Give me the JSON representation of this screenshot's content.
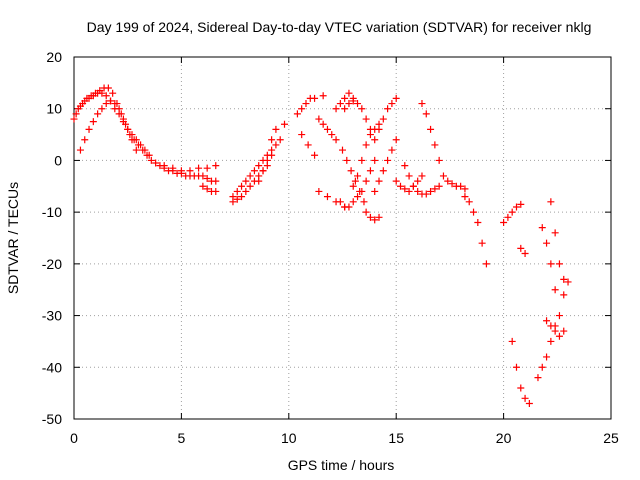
{
  "chart_data": {
    "type": "scatter",
    "title": "Day 199 of 2024, Sidereal Day-to-day VTEC variation (SDTVAR) for receiver nklg",
    "xlabel": "GPS time / hours",
    "ylabel": "SDTVAR / TECUs",
    "xlim": [
      0,
      25
    ],
    "ylim": [
      -50,
      20
    ],
    "xticks": [
      "0",
      "5",
      "10",
      "15",
      "20",
      "25"
    ],
    "yticks": [
      "20",
      "10",
      "0",
      "-10",
      "-20",
      "-30",
      "-40",
      "-50"
    ],
    "grid": true,
    "marker": "+",
    "marker_color": "#ff0000",
    "series": [
      {
        "name": "SDTVAR",
        "segments": [
          {
            "x": [
              0.0,
              0.2,
              0.4,
              0.6,
              0.8,
              1.0,
              1.2,
              1.4,
              1.6,
              1.8,
              2.0,
              2.2,
              2.4,
              2.6,
              2.8,
              3.0,
              3.2,
              3.4,
              3.6,
              3.8,
              4.0,
              4.2,
              4.4,
              4.6,
              4.8,
              5.0,
              5.2,
              5.4,
              5.6,
              5.8,
              6.0,
              6.2,
              6.4,
              6.6
            ],
            "y": [
              8,
              10,
              11,
              12,
              12.5,
              13,
              13.5,
              14,
              14,
              13,
              11,
              9,
              7,
              5,
              4,
              3,
              2,
              1,
              0,
              -0.5,
              -1,
              -1.5,
              -2,
              -2,
              -2.5,
              -2.5,
              -3,
              -3,
              -3,
              -3,
              -3,
              -3.5,
              -4,
              -4
            ]
          },
          {
            "x": [
              0.1,
              0.3,
              0.5,
              0.7,
              0.9,
              1.1,
              1.3,
              1.5,
              1.7,
              1.9,
              2.1,
              2.3,
              2.5,
              2.7,
              2.9,
              3.1,
              3.3,
              3.5
            ],
            "y": [
              9,
              10.5,
              11.5,
              12,
              12.5,
              13,
              13,
              12.5,
              11.5,
              10,
              9,
              7.5,
              6,
              5,
              4,
              3,
              2,
              1
            ]
          },
          {
            "x": [
              0.3,
              0.5,
              0.7,
              0.9,
              1.1,
              1.3,
              1.5,
              1.7,
              1.9,
              2.1,
              2.3,
              2.5,
              2.7,
              2.9
            ],
            "y": [
              2,
              4,
              6,
              7.5,
              9,
              10,
              11,
              11.5,
              11,
              10,
              8,
              6,
              4,
              2
            ]
          },
          {
            "x": [
              4.2,
              4.6,
              5.0,
              5.4,
              5.8,
              6.2,
              6.6
            ],
            "y": [
              -1,
              -1.5,
              -2,
              -2,
              -1.5,
              -1.5,
              -1
            ]
          },
          {
            "x": [
              6.0,
              6.2,
              6.4,
              6.6
            ],
            "y": [
              -5,
              -5.5,
              -6,
              -6
            ]
          },
          {
            "x": [
              7.4,
              7.6,
              7.8,
              8.0,
              8.2,
              8.4,
              8.6,
              8.8,
              9.0,
              9.2
            ],
            "y": [
              -7,
              -6,
              -5,
              -4,
              -3,
              -2,
              -1,
              0,
              1,
              1
            ]
          },
          {
            "x": [
              7.4,
              7.6,
              7.8,
              8.0,
              8.2,
              8.4,
              8.6,
              8.8,
              9.0
            ],
            "y": [
              -8,
              -7.5,
              -7,
              -6,
              -5,
              -4,
              -3,
              -2,
              -1
            ]
          },
          {
            "x": [
              8.6,
              8.8,
              9.0,
              9.2,
              9.4
            ],
            "y": [
              -4,
              -2,
              0,
              2,
              3
            ]
          },
          {
            "x": [
              9.2,
              9.4,
              9.6,
              9.8
            ],
            "y": [
              4,
              6,
              4,
              7
            ]
          },
          {
            "x": [
              10.4,
              10.6,
              10.8,
              11.0,
              11.2,
              11.6
            ],
            "y": [
              9,
              10,
              11,
              12,
              12,
              12.5
            ]
          },
          {
            "x": [
              10.6,
              10.9,
              11.2
            ],
            "y": [
              5,
              3,
              1
            ]
          },
          {
            "x": [
              11.4,
              11.6,
              11.8,
              12.0,
              12.2
            ],
            "y": [
              8,
              7,
              6,
              5,
              4
            ]
          },
          {
            "x": [
              12.2,
              12.4,
              12.6,
              12.8,
              13.0
            ],
            "y": [
              10,
              11,
              12,
              13,
              12
            ]
          },
          {
            "x": [
              11.4,
              11.8,
              12.2,
              12.6
            ],
            "y": [
              -6,
              -7,
              -8,
              -9
            ]
          },
          {
            "x": [
              12.4,
              12.6,
              12.8,
              13.0,
              13.2,
              13.4,
              13.6,
              13.8,
              14.0
            ],
            "y": [
              -8,
              -9,
              -9,
              -8,
              -7,
              -6,
              -4,
              -2,
              0
            ]
          },
          {
            "x": [
              12.6,
              12.8,
              13.0,
              13.2,
              13.4,
              13.6,
              13.8,
              14.0
            ],
            "y": [
              10,
              11,
              11.5,
              11,
              10,
              8,
              6,
              4
            ]
          },
          {
            "x": [
              12.5,
              12.7,
              12.9,
              13.1,
              13.3,
              13.5
            ],
            "y": [
              2,
              0,
              -2,
              -4,
              -6,
              -8
            ]
          },
          {
            "x": [
              13.0,
              13.2,
              13.4,
              13.6,
              13.8,
              14.0,
              14.2
            ],
            "y": [
              -5,
              -3,
              0,
              3,
              5,
              6,
              7
            ]
          },
          {
            "x": [
              13.6,
              13.8,
              14.0,
              14.2
            ],
            "y": [
              -10,
              -11,
              -11.5,
              -11
            ]
          },
          {
            "x": [
              14.2,
              14.4,
              14.6,
              14.8,
              15.0
            ],
            "y": [
              6,
              8,
              10,
              11,
              12
            ]
          },
          {
            "x": [
              14.0,
              14.2,
              14.4,
              14.6,
              14.8,
              15.0
            ],
            "y": [
              -6,
              -4,
              -2,
              0,
              2,
              4
            ]
          },
          {
            "x": [
              15.0,
              15.2,
              15.4,
              15.6,
              15.8,
              16.0,
              16.2
            ],
            "y": [
              -4,
              -5,
              -5.5,
              -6,
              -5,
              -4,
              -3
            ]
          },
          {
            "x": [
              16.2,
              16.4,
              16.6,
              16.8,
              17.0,
              17.2
            ],
            "y": [
              11,
              9,
              6,
              3,
              0,
              -3
            ]
          },
          {
            "x": [
              15.4,
              15.6,
              15.8,
              16.0,
              16.2,
              16.4,
              16.6,
              16.8,
              17.0
            ],
            "y": [
              -1,
              -3,
              -5,
              -6,
              -6.5,
              -6.5,
              -6,
              -5.5,
              -5
            ]
          },
          {
            "x": [
              17.4,
              17.6,
              17.8,
              18.0,
              18.2
            ],
            "y": [
              -4,
              -4.5,
              -5,
              -5,
              -5.5
            ]
          },
          {
            "x": [
              18.2,
              18.4,
              18.6,
              18.8,
              19.0,
              19.2
            ],
            "y": [
              -7,
              -8,
              -10,
              -12,
              -16,
              -20
            ]
          },
          {
            "x": [
              20.0,
              20.2,
              20.4,
              20.6,
              20.8
            ],
            "y": [
              -12,
              -11,
              -10,
              -9,
              -8.5
            ]
          },
          {
            "x": [
              20.4,
              20.6,
              20.8,
              21.0,
              21.2
            ],
            "y": [
              -35,
              -40,
              -44,
              -46,
              -47
            ]
          },
          {
            "x": [
              20.8,
              21.0
            ],
            "y": [
              -17,
              -18
            ]
          },
          {
            "x": [
              21.6,
              21.8,
              22.0,
              22.2,
              22.4,
              22.6
            ],
            "y": [
              -42,
              -40,
              -38,
              -35,
              -32,
              -30
            ]
          },
          {
            "x": [
              21.8,
              22.0,
              22.2,
              22.4
            ],
            "y": [
              -13,
              -16,
              -20,
              -25
            ]
          },
          {
            "x": [
              22.2,
              22.4,
              22.6,
              22.8
            ],
            "y": [
              -8,
              -14,
              -20,
              -26
            ]
          },
          {
            "x": [
              22.0,
              22.2,
              22.4,
              22.6,
              22.8
            ],
            "y": [
              -31,
              -32,
              -33,
              -34,
              -33
            ]
          },
          {
            "x": [
              22.8,
              23.0
            ],
            "y": [
              -23,
              -23.5
            ]
          }
        ]
      }
    ]
  }
}
